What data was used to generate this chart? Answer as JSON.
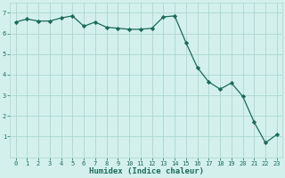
{
  "x": [
    0,
    1,
    2,
    3,
    4,
    5,
    6,
    7,
    8,
    9,
    10,
    11,
    12,
    13,
    14,
    15,
    16,
    17,
    18,
    19,
    20,
    21,
    22,
    23
  ],
  "y": [
    6.55,
    6.7,
    6.6,
    6.6,
    6.75,
    6.85,
    6.35,
    6.55,
    6.3,
    6.25,
    6.2,
    6.2,
    6.25,
    6.8,
    6.85,
    5.55,
    4.35,
    3.65,
    3.3,
    3.6,
    2.95,
    1.7,
    0.7,
    1.1
  ],
  "line_color": "#1a6b5a",
  "marker": "D",
  "markersize": 2.2,
  "bg_color": "#d4f0ec",
  "grid_color": "#aad8d0",
  "tick_color": "#1a6b5a",
  "xlabel": "Humidex (Indice chaleur)",
  "xlabel_fontsize": 6.5,
  "xlim": [
    -0.5,
    23.5
  ],
  "ylim": [
    0,
    7.5
  ],
  "yticks": [
    1,
    2,
    3,
    4,
    5,
    6,
    7
  ],
  "xticks": [
    0,
    1,
    2,
    3,
    4,
    5,
    6,
    7,
    8,
    9,
    10,
    11,
    12,
    13,
    14,
    15,
    16,
    17,
    18,
    19,
    20,
    21,
    22,
    23
  ],
  "tick_fontsize": 5.0
}
